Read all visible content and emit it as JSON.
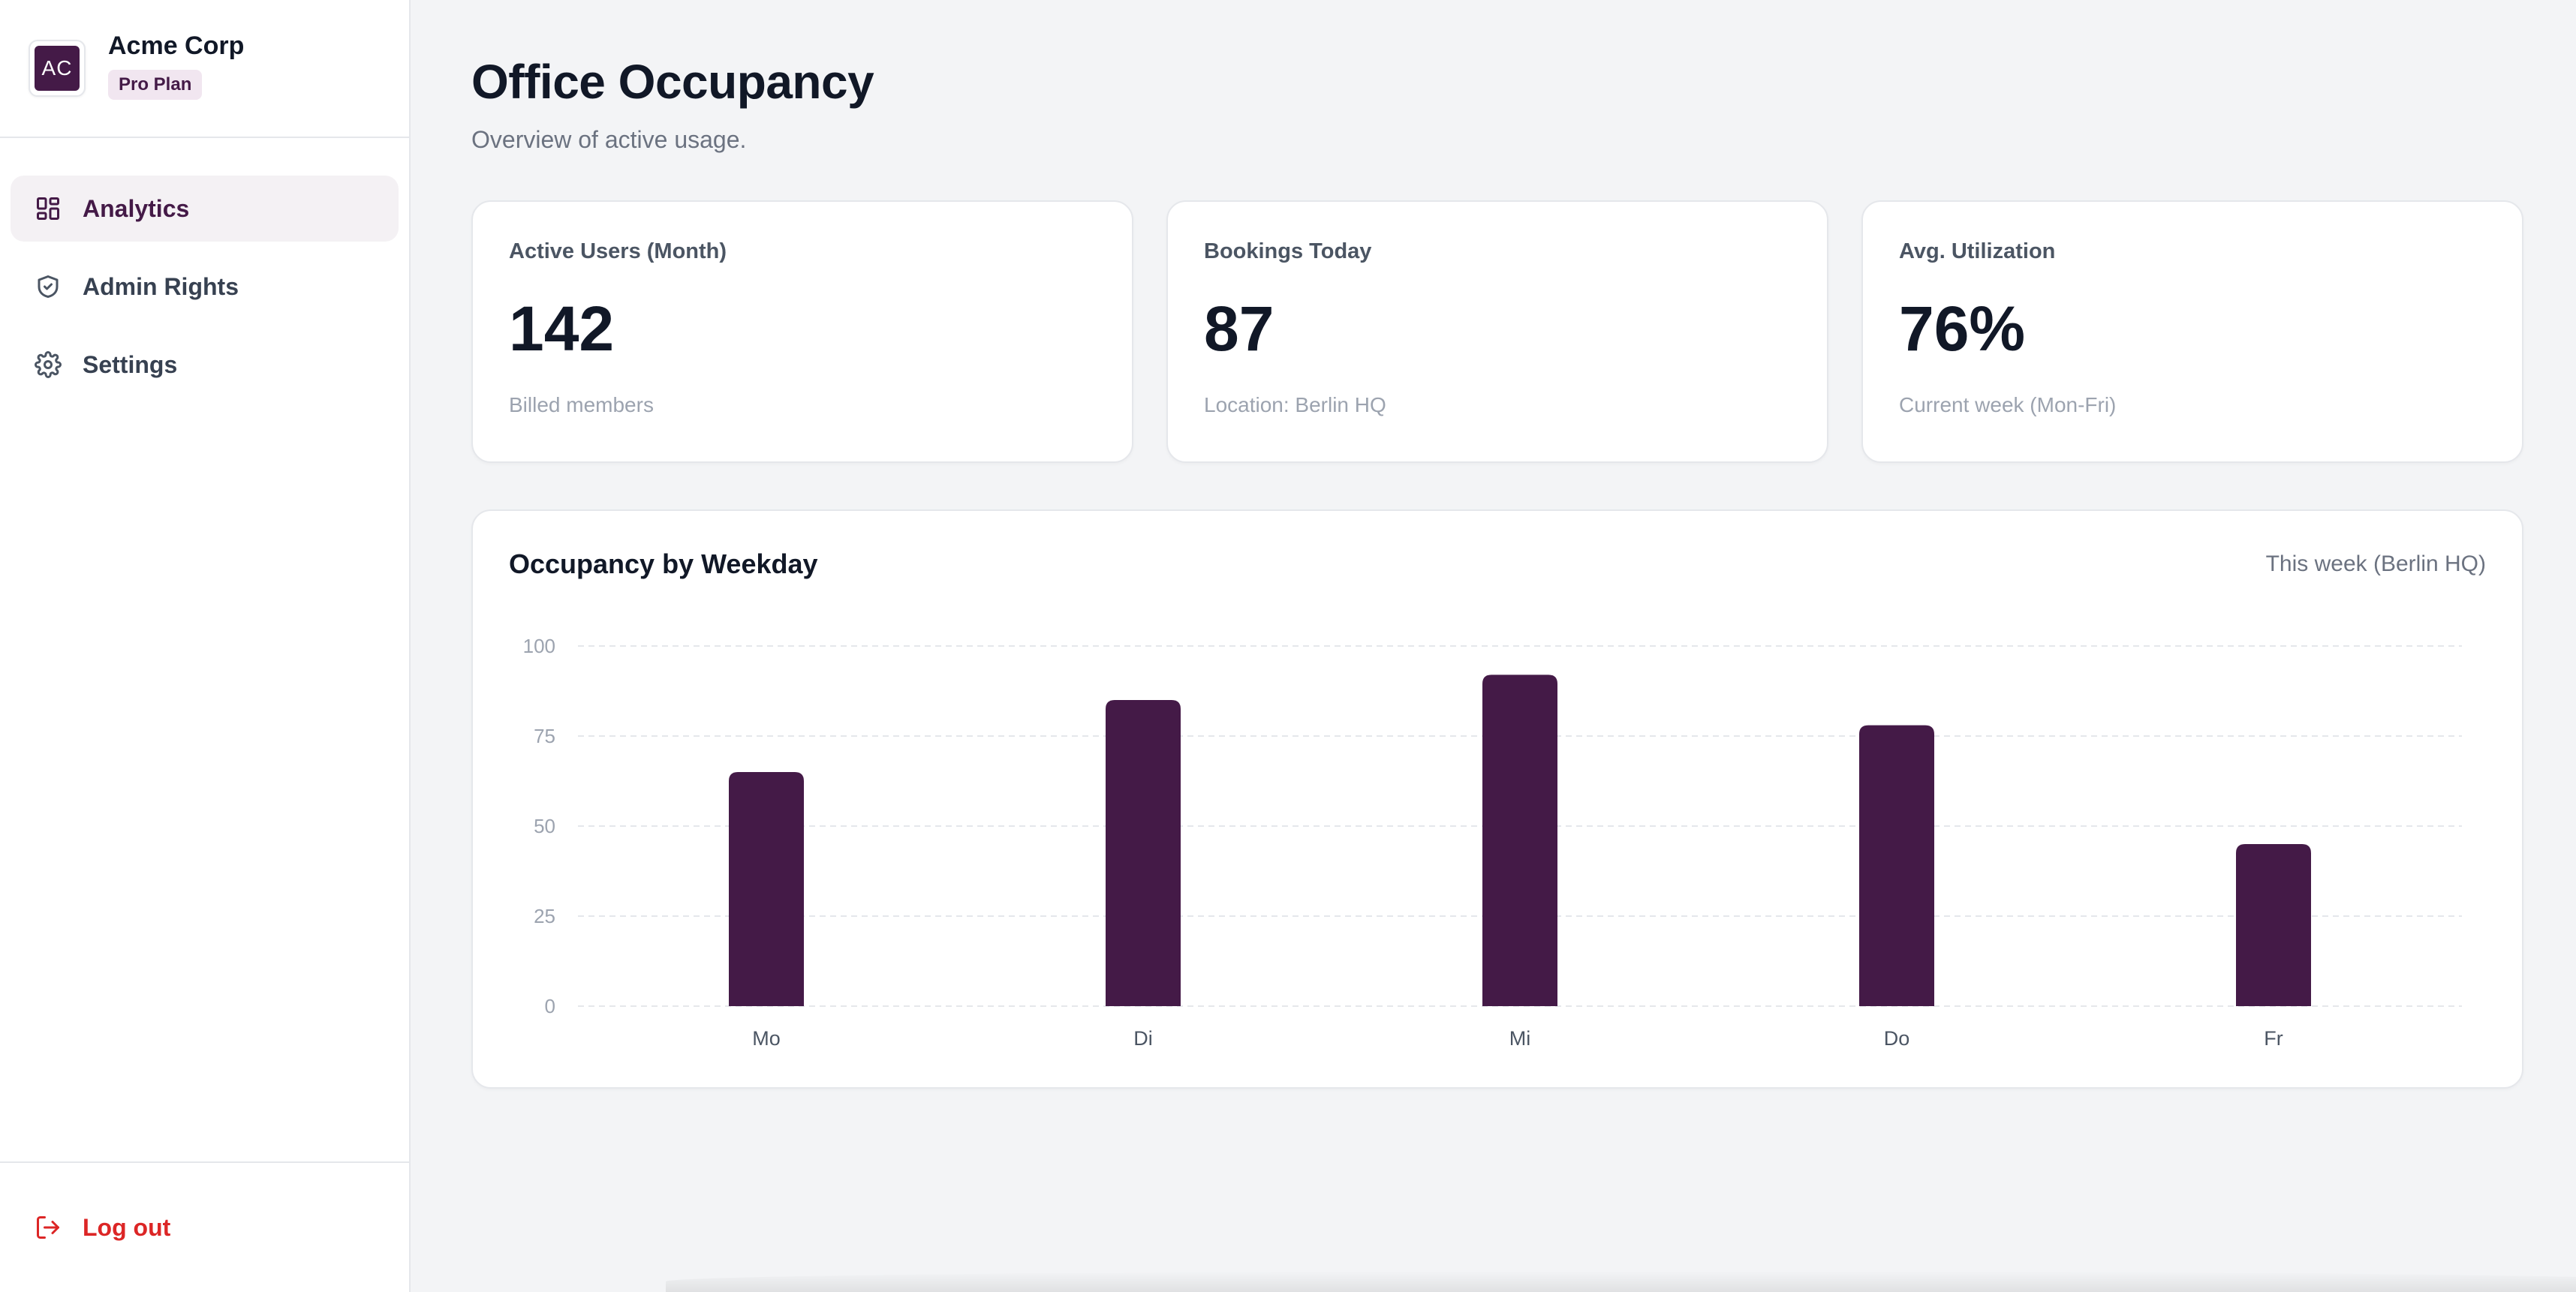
{
  "brand": {
    "initials": "AC",
    "name": "Acme Corp",
    "plan": "Pro Plan"
  },
  "nav": {
    "items": [
      {
        "label": "Analytics",
        "icon": "dashboard-icon",
        "active": true
      },
      {
        "label": "Admin Rights",
        "icon": "shield-check-icon",
        "active": false
      },
      {
        "label": "Settings",
        "icon": "gear-icon",
        "active": false
      }
    ],
    "logout": "Log out"
  },
  "header": {
    "title": "Office Occupancy",
    "subtitle": "Overview of active usage."
  },
  "stats": [
    {
      "label": "Active Users (Month)",
      "value": "142",
      "sub": "Billed members"
    },
    {
      "label": "Bookings Today",
      "value": "87",
      "sub": "Location: Berlin HQ"
    },
    {
      "label": "Avg. Utilization",
      "value": "76%",
      "sub": "Current week (Mon-Fri)"
    }
  ],
  "colors": {
    "accent": "#441a47",
    "logout": "#dc2626",
    "page_bg": "#f3f4f6"
  },
  "chart": {
    "title": "Occupancy by Weekday",
    "caption": "This week (Berlin HQ)"
  },
  "chart_data": {
    "type": "bar",
    "categories": [
      "Mo",
      "Di",
      "Mi",
      "Do",
      "Fr"
    ],
    "values": [
      65,
      85,
      92,
      78,
      45
    ],
    "ylim": [
      0,
      100
    ],
    "yticks": [
      0,
      25,
      50,
      75,
      100
    ],
    "grid": true,
    "bar_color": "#441a47"
  }
}
